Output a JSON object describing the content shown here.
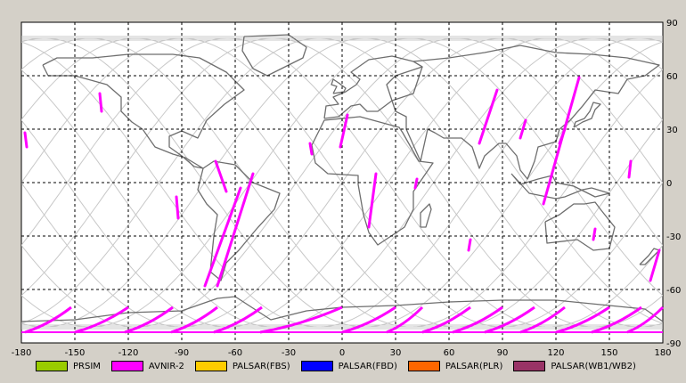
{
  "chart_data": {
    "type": "map",
    "projection": "equirectangular",
    "x_ticks": [
      -180,
      -150,
      -120,
      -90,
      -60,
      -30,
      0,
      30,
      60,
      90,
      120,
      150,
      180
    ],
    "y_ticks": [
      90,
      60,
      30,
      0,
      -30,
      -60,
      -90
    ],
    "xlim": [
      -180,
      180
    ],
    "ylim": [
      -90,
      90
    ],
    "grid": "dashed",
    "legend_position": "bottom",
    "colors": {
      "coastline": "#6e6e6e",
      "orbit_track": "#c8c8c8",
      "grid": "#000000",
      "plot_bg": "#ffffff",
      "frame_bg": "#d4d0c8"
    },
    "legend": [
      {
        "label": "PRSIM",
        "color": "#99cc00"
      },
      {
        "label": "AVNIR-2",
        "color": "#ff00ff"
      },
      {
        "label": "PALSAR(FBS)",
        "color": "#ffcc00"
      },
      {
        "label": "PALSAR(FBD)",
        "color": "#0000ff"
      },
      {
        "label": "PALSAR(PLR)",
        "color": "#ff6600"
      },
      {
        "label": "PALSAR(WB1/WB2)",
        "color": "#993366"
      }
    ],
    "avnir2_segments": [
      [
        [
          -178,
          28
        ],
        [
          -177,
          20
        ]
      ],
      [
        [
          -136,
          50
        ],
        [
          -135,
          40
        ]
      ],
      [
        [
          -93,
          -8
        ],
        [
          -92,
          -20
        ]
      ],
      [
        [
          -71,
          12
        ],
        [
          -65,
          -5
        ]
      ],
      [
        [
          -50,
          5
        ],
        [
          -70,
          -58
        ]
      ],
      [
        [
          -57,
          -3
        ],
        [
          -77,
          -58
        ]
      ],
      [
        [
          -18,
          22
        ],
        [
          -17,
          16
        ]
      ],
      [
        [
          3,
          38
        ],
        [
          -1,
          20
        ]
      ],
      [
        [
          19,
          5
        ],
        [
          15,
          -25
        ]
      ],
      [
        [
          42,
          2
        ],
        [
          41,
          -3
        ]
      ],
      [
        [
          72,
          -32
        ],
        [
          71,
          -38
        ]
      ],
      [
        [
          87,
          52
        ],
        [
          77,
          22
        ]
      ],
      [
        [
          103,
          35
        ],
        [
          100,
          25
        ]
      ],
      [
        [
          133,
          59
        ],
        [
          113,
          -12
        ]
      ],
      [
        [
          125,
          30
        ],
        [
          122,
          22
        ]
      ],
      [
        [
          142,
          -26
        ],
        [
          141,
          -32
        ]
      ],
      [
        [
          162,
          12
        ],
        [
          161,
          3
        ]
      ],
      [
        [
          178,
          -38
        ],
        [
          173,
          -55
        ]
      ]
    ],
    "antarctic_swaths": [
      [
        -178,
        -152
      ],
      [
        -150,
        -120
      ],
      [
        -122,
        -95
      ],
      [
        -96,
        -70
      ],
      [
        -72,
        -45
      ],
      [
        -46,
        0
      ],
      [
        0,
        30
      ],
      [
        25,
        45
      ],
      [
        45,
        72
      ],
      [
        62,
        90
      ],
      [
        80,
        108
      ],
      [
        100,
        125
      ],
      [
        120,
        150
      ],
      [
        140,
        168
      ],
      [
        160,
        180
      ]
    ]
  }
}
